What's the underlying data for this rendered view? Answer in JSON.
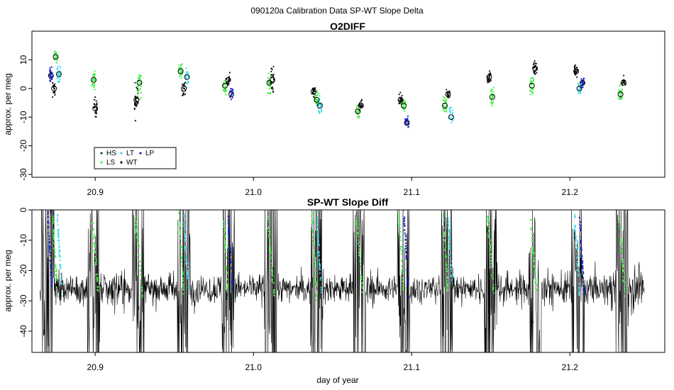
{
  "figure": {
    "suptitle": "090120a   Calibration Data SP-WT Slope Delta",
    "xlabel": "day of year"
  },
  "colors": {
    "HS": "#0a5a0a",
    "LS": "#44ee44",
    "LT": "#33ddee",
    "WT": "#111111",
    "LP": "#1122cc",
    "line": "#000000"
  },
  "chart_data": [
    {
      "type": "scatter",
      "title": "O2DIFF",
      "xlabel": "",
      "ylabel": "approx. per meg",
      "xlim": [
        20.86,
        21.26
      ],
      "ylim": [
        -31,
        20
      ],
      "x_ticks": [
        20.9,
        21.0,
        21.1,
        21.2
      ],
      "x_tick_labels": [
        "20.9",
        "21.0",
        "21.1",
        "21.2"
      ],
      "y_ticks": [
        -30,
        -20,
        -10,
        0,
        10
      ],
      "y_tick_labels": [
        "-30",
        "-20",
        "-10",
        "0",
        "10"
      ],
      "legend": {
        "position": "bottom-left",
        "entries": [
          {
            "label": "HS",
            "series": "HS"
          },
          {
            "label": "LS",
            "series": "LS"
          },
          {
            "label": "LT",
            "series": "LT"
          },
          {
            "label": "WT",
            "series": "WT"
          },
          {
            "label": "LP",
            "series": "LP"
          }
        ]
      },
      "groups": [
        {
          "x": 20.872,
          "series": "LP",
          "mean": 4.5,
          "spread": 4,
          "n": 30
        },
        {
          "x": 20.874,
          "series": "WT",
          "mean": 0,
          "spread": 4,
          "n": 20
        },
        {
          "x": 20.875,
          "series": "LS",
          "mean": 11,
          "spread": 3,
          "n": 25
        },
        {
          "x": 20.877,
          "series": "LT",
          "mean": 5,
          "spread": 4,
          "n": 25
        },
        {
          "x": 20.899,
          "series": "LS",
          "mean": 3,
          "spread": 5,
          "n": 30
        },
        {
          "x": 20.9,
          "series": "WT",
          "mean": -7,
          "spread": 5,
          "n": 25
        },
        {
          "x": 20.926,
          "series": "WT",
          "mean": -4,
          "spread": 9,
          "n": 35
        },
        {
          "x": 20.928,
          "series": "LS",
          "mean": 2,
          "spread": 7,
          "n": 30
        },
        {
          "x": 20.954,
          "series": "LS",
          "mean": 6,
          "spread": 4,
          "n": 30
        },
        {
          "x": 20.956,
          "series": "WT",
          "mean": 0,
          "spread": 4,
          "n": 20
        },
        {
          "x": 20.958,
          "series": "LT",
          "mean": 4,
          "spread": 4,
          "n": 25
        },
        {
          "x": 20.982,
          "series": "LS",
          "mean": 1,
          "spread": 4,
          "n": 30
        },
        {
          "x": 20.984,
          "series": "WT",
          "mean": 3,
          "spread": 4,
          "n": 20
        },
        {
          "x": 20.986,
          "series": "LP",
          "mean": -2,
          "spread": 3,
          "n": 20
        },
        {
          "x": 21.01,
          "series": "LS",
          "mean": 2,
          "spread": 5,
          "n": 30
        },
        {
          "x": 21.012,
          "series": "WT",
          "mean": 3,
          "spread": 6,
          "n": 25
        },
        {
          "x": 21.038,
          "series": "WT",
          "mean": -1,
          "spread": 3,
          "n": 25
        },
        {
          "x": 21.04,
          "series": "LS",
          "mean": -4,
          "spread": 4,
          "n": 30
        },
        {
          "x": 21.042,
          "series": "LT",
          "mean": -6,
          "spread": 5,
          "n": 25
        },
        {
          "x": 21.066,
          "series": "LS",
          "mean": -8,
          "spread": 3,
          "n": 25
        },
        {
          "x": 21.068,
          "series": "WT",
          "mean": -6,
          "spread": 3,
          "n": 20
        },
        {
          "x": 21.093,
          "series": "WT",
          "mean": -4,
          "spread": 3,
          "n": 25
        },
        {
          "x": 21.095,
          "series": "LS",
          "mean": -6,
          "spread": 3,
          "n": 25
        },
        {
          "x": 21.097,
          "series": "LP",
          "mean": -12,
          "spread": 3,
          "n": 25
        },
        {
          "x": 21.121,
          "series": "LS",
          "mean": -6,
          "spread": 4,
          "n": 30
        },
        {
          "x": 21.123,
          "series": "WT",
          "mean": -2,
          "spread": 3,
          "n": 20
        },
        {
          "x": 21.125,
          "series": "LT",
          "mean": -10,
          "spread": 5,
          "n": 25
        },
        {
          "x": 21.149,
          "series": "WT",
          "mean": 4,
          "spread": 4,
          "n": 25
        },
        {
          "x": 21.151,
          "series": "LS",
          "mean": -3,
          "spread": 5,
          "n": 30
        },
        {
          "x": 21.176,
          "series": "LS",
          "mean": 1,
          "spread": 5,
          "n": 30
        },
        {
          "x": 21.178,
          "series": "WT",
          "mean": 7,
          "spread": 4,
          "n": 25
        },
        {
          "x": 21.204,
          "series": "WT",
          "mean": 6,
          "spread": 3,
          "n": 25
        },
        {
          "x": 21.206,
          "series": "LT",
          "mean": 0,
          "spread": 3,
          "n": 20
        },
        {
          "x": 21.208,
          "series": "LP",
          "mean": 2,
          "spread": 3,
          "n": 20
        },
        {
          "x": 21.232,
          "series": "LS",
          "mean": -2,
          "spread": 4,
          "n": 30
        },
        {
          "x": 21.234,
          "series": "WT",
          "mean": 2,
          "spread": 3,
          "n": 20
        }
      ]
    },
    {
      "type": "line",
      "title": "SP-WT Slope Diff",
      "xlabel": "day of year",
      "ylabel": "approx. per meg",
      "xlim": [
        20.86,
        21.26
      ],
      "ylim": [
        -47,
        0
      ],
      "x_ticks": [
        20.9,
        21.0,
        21.1,
        21.2
      ],
      "x_tick_labels": [
        "20.9",
        "21.0",
        "21.1",
        "21.2"
      ],
      "y_ticks": [
        -40,
        -30,
        -20,
        -10,
        0
      ],
      "y_tick_labels": [
        "-40",
        "-30",
        "-20",
        "-10",
        "0"
      ],
      "trace_range": [
        20.865,
        21.247
      ],
      "baseline": -26,
      "noise_amplitude": 4,
      "spike_days": [
        20.87,
        20.899,
        20.927,
        20.956,
        20.984,
        21.011,
        21.04,
        21.067,
        21.095,
        21.122,
        21.15,
        21.178,
        21.205,
        21.233
      ],
      "cal_segments": [
        {
          "x_start": 20.87,
          "x_end": 20.873,
          "series": "LP"
        },
        {
          "x_start": 20.873,
          "x_end": 20.876,
          "series": "LS"
        },
        {
          "x_start": 20.876,
          "x_end": 20.879,
          "series": "LT"
        },
        {
          "x_start": 20.898,
          "x_end": 20.902,
          "series": "LS"
        },
        {
          "x_start": 20.925,
          "x_end": 20.93,
          "series": "LS"
        },
        {
          "x_start": 20.953,
          "x_end": 20.956,
          "series": "LS"
        },
        {
          "x_start": 20.956,
          "x_end": 20.959,
          "series": "LT"
        },
        {
          "x_start": 20.981,
          "x_end": 20.984,
          "series": "LS"
        },
        {
          "x_start": 20.984,
          "x_end": 20.987,
          "series": "LP"
        },
        {
          "x_start": 21.009,
          "x_end": 21.013,
          "series": "LS"
        },
        {
          "x_start": 21.037,
          "x_end": 21.04,
          "series": "LS"
        },
        {
          "x_start": 21.04,
          "x_end": 21.043,
          "series": "LT"
        },
        {
          "x_start": 21.065,
          "x_end": 21.069,
          "series": "LS"
        },
        {
          "x_start": 21.092,
          "x_end": 21.095,
          "series": "LS"
        },
        {
          "x_start": 21.095,
          "x_end": 21.098,
          "series": "LP"
        },
        {
          "x_start": 21.12,
          "x_end": 21.123,
          "series": "LS"
        },
        {
          "x_start": 21.123,
          "x_end": 21.126,
          "series": "LT"
        },
        {
          "x_start": 21.148,
          "x_end": 21.152,
          "series": "LS"
        },
        {
          "x_start": 21.175,
          "x_end": 21.179,
          "series": "LS"
        },
        {
          "x_start": 21.203,
          "x_end": 21.206,
          "series": "LT"
        },
        {
          "x_start": 21.206,
          "x_end": 21.209,
          "series": "LP"
        },
        {
          "x_start": 21.231,
          "x_end": 21.235,
          "series": "LS"
        }
      ]
    }
  ]
}
